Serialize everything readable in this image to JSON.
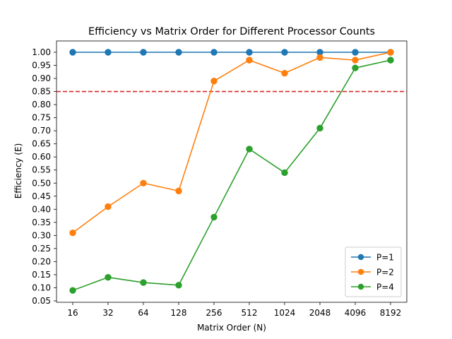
{
  "chart_data": {
    "type": "line",
    "title": "Efficiency vs Matrix Order for Different Processor Counts",
    "xlabel": "Matrix Order (N)",
    "ylabel": "Efficiency (E)",
    "categories": [
      "16",
      "32",
      "64",
      "128",
      "256",
      "512",
      "1024",
      "2048",
      "4096",
      "8192"
    ],
    "ylim": [
      0.05,
      1.0
    ],
    "yticks": [
      0.05,
      0.1,
      0.15,
      0.2,
      0.25,
      0.3,
      0.35,
      0.4,
      0.45,
      0.5,
      0.55,
      0.6,
      0.65,
      0.7,
      0.75,
      0.8,
      0.85,
      0.9,
      0.95,
      1.0
    ],
    "ytick_labels": [
      "0.05",
      "0.10",
      "0.15",
      "0.20",
      "0.25",
      "0.30",
      "0.35",
      "0.40",
      "0.45",
      "0.50",
      "0.55",
      "0.60",
      "0.65",
      "0.70",
      "0.75",
      "0.80",
      "0.85",
      "0.90",
      "0.95",
      "1.00"
    ],
    "series": [
      {
        "name": "P=1",
        "color": "#1f77b4",
        "values": [
          1.0,
          1.0,
          1.0,
          1.0,
          1.0,
          1.0,
          1.0,
          1.0,
          1.0,
          1.0
        ]
      },
      {
        "name": "P=2",
        "color": "#ff7f0e",
        "values": [
          0.31,
          0.41,
          0.5,
          0.47,
          0.89,
          0.97,
          0.92,
          0.98,
          0.97,
          1.0
        ]
      },
      {
        "name": "P=4",
        "color": "#2ca02c",
        "values": [
          0.09,
          0.14,
          0.12,
          0.11,
          0.37,
          0.63,
          0.54,
          0.71,
          0.94,
          0.97
        ]
      }
    ],
    "reference_line": {
      "y": 0.85,
      "color": "#d62728",
      "style": "dashed"
    },
    "legend_position": "lower-right",
    "grid": false
  }
}
